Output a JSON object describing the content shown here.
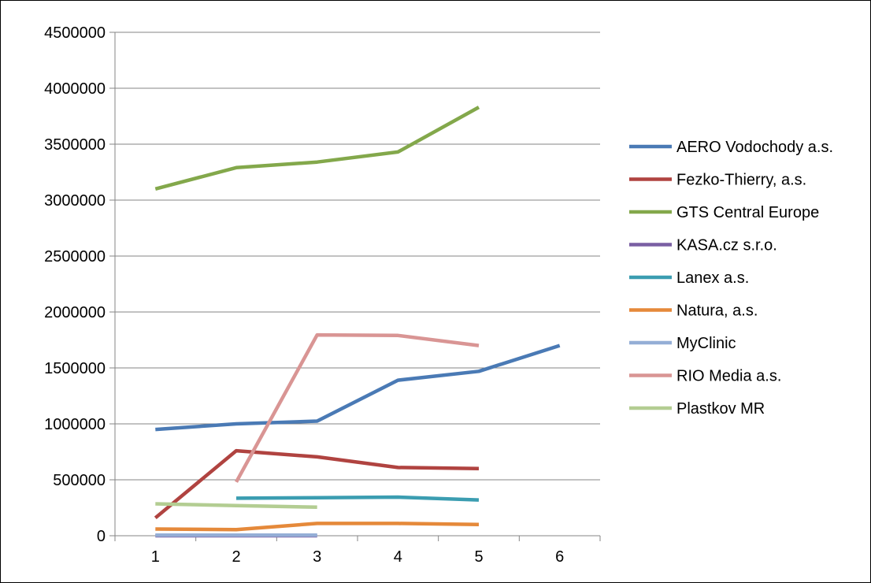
{
  "chart_data": {
    "type": "line",
    "title": "",
    "xlabel": "",
    "ylabel": "",
    "x": [
      1,
      2,
      3,
      4,
      5,
      6
    ],
    "xlim": [
      0.5,
      6.5
    ],
    "ylim": [
      0,
      4500000
    ],
    "y_ticks": [
      "0",
      "500000",
      "1000000",
      "1500000",
      "2000000",
      "2500000",
      "3000000",
      "3500000",
      "4000000",
      "4500000"
    ],
    "x_ticks": [
      "1",
      "2",
      "3",
      "4",
      "5",
      "6"
    ],
    "grid": "horizontal",
    "legend_position": "right",
    "series": [
      {
        "name": "AERO Vodochody a.s.",
        "color": "#4a7ab5",
        "values": [
          950000,
          1000000,
          1025000,
          1390000,
          1470000,
          1700000
        ]
      },
      {
        "name": "Fezko-Thierry, a.s.",
        "color": "#b04340",
        "values": [
          160000,
          760000,
          705000,
          610000,
          600000,
          null
        ]
      },
      {
        "name": "GTS Central Europe",
        "color": "#83a84b",
        "values": [
          3100000,
          3290000,
          3340000,
          3430000,
          3830000,
          null
        ]
      },
      {
        "name": "KASA.cz s.r.o.",
        "color": "#7a5fa3",
        "values": [
          0,
          0,
          0,
          null,
          null,
          null
        ]
      },
      {
        "name": "Lanex a.s.",
        "color": "#3b9db1",
        "values": [
          null,
          335000,
          340000,
          345000,
          320000,
          null
        ]
      },
      {
        "name": "Natura, a.s.",
        "color": "#e5893a",
        "values": [
          60000,
          55000,
          110000,
          110000,
          100000,
          null
        ]
      },
      {
        "name": "MyClinic",
        "color": "#94aed6",
        "values": [
          5000,
          5000,
          5000,
          null,
          null,
          null
        ]
      },
      {
        "name": "RIO Media a.s.",
        "color": "#d99594",
        "values": [
          null,
          480000,
          1795000,
          1790000,
          1700000,
          null
        ]
      },
      {
        "name": "Plastkov MR",
        "color": "#b3cd92",
        "values": [
          285000,
          270000,
          255000,
          null,
          null,
          null
        ]
      }
    ]
  }
}
